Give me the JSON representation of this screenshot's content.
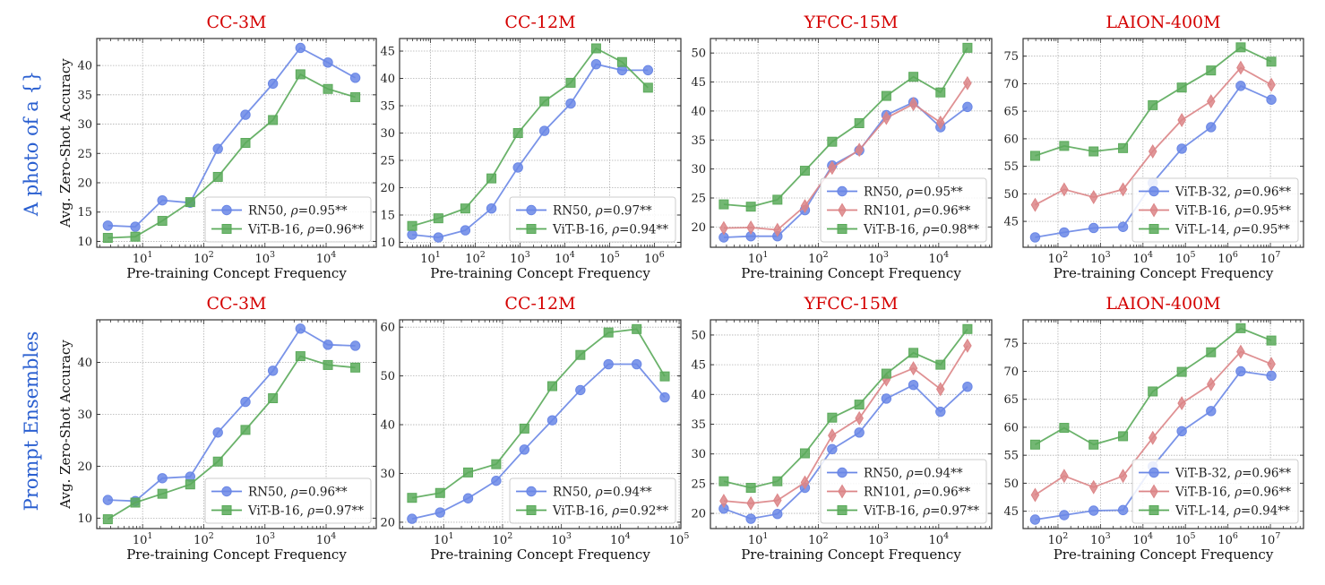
{
  "colors": {
    "blue": "#6a87e6",
    "red": "#dc8587",
    "green": "#5aaa5a",
    "title": "#d40000",
    "row_label": "#2a5fd0"
  },
  "row_labels": [
    "A photo of a {}",
    "Prompt Ensembles"
  ],
  "chart_data": [
    {
      "type": "line",
      "title": "CC-3M",
      "xlabel": "Pre-training Concept Frequency",
      "ylabel": "Avg. Zero-Shot Accuracy",
      "xscale": "log",
      "grid": true,
      "legend_position": "lower right",
      "xlim": [
        1.78,
        66000
      ],
      "ylim": [
        9.0,
        44.6
      ],
      "xticks": [
        10,
        100,
        1000,
        10000
      ],
      "yticks": [
        10,
        15,
        20,
        25,
        30,
        35,
        40
      ],
      "x": [
        2.7,
        7.6,
        21,
        60,
        170,
        480,
        1350,
        3800,
        10700,
        30000
      ],
      "series": [
        {
          "name": "RN50",
          "legend": "RN50, ρ=0.95**",
          "color": "blue",
          "marker": "circle",
          "values": [
            12.7,
            12.5,
            17.0,
            16.6,
            25.8,
            31.6,
            36.9,
            43.0,
            40.5,
            37.9
          ]
        },
        {
          "name": "ViT-B-16",
          "legend": "ViT-B-16, ρ=0.96**",
          "color": "green",
          "marker": "square",
          "values": [
            10.6,
            10.8,
            13.5,
            16.7,
            21.0,
            26.8,
            30.7,
            38.5,
            36.0,
            34.6
          ]
        }
      ]
    },
    {
      "type": "line",
      "title": "CC-12M",
      "xlabel": "Pre-training Concept Frequency",
      "ylabel": "",
      "xscale": "log",
      "grid": true,
      "legend_position": "lower right",
      "xlim": [
        2.04,
        3900000
      ],
      "ylim": [
        9.1,
        47.3
      ],
      "xticks": [
        10,
        100,
        1000,
        10000,
        100000,
        1000000
      ],
      "yticks": [
        10,
        15,
        20,
        25,
        30,
        35,
        40,
        45
      ],
      "x": [
        3.9,
        15,
        60,
        230,
        900,
        3500,
        13500,
        50000,
        190000,
        720000
      ],
      "series": [
        {
          "name": "RN50",
          "legend": "RN50, ρ=0.97**",
          "color": "blue",
          "marker": "circle",
          "values": [
            11.4,
            10.9,
            12.2,
            16.2,
            23.7,
            30.4,
            35.4,
            42.6,
            41.5,
            41.5
          ]
        },
        {
          "name": "ViT-B-16",
          "legend": "ViT-B-16, ρ=0.94**",
          "color": "green",
          "marker": "square",
          "values": [
            13.0,
            14.4,
            16.2,
            21.7,
            30.0,
            35.8,
            39.2,
            45.5,
            43.0,
            38.3
          ]
        }
      ]
    },
    {
      "type": "line",
      "title": "YFCC-15M",
      "xlabel": "Pre-training Concept Frequency",
      "ylabel": "",
      "xscale": "log",
      "grid": true,
      "legend_position": "lower right",
      "xlim": [
        1.62,
        75900
      ],
      "ylim": [
        16.5,
        52.5
      ],
      "xticks": [
        10,
        100,
        1000,
        10000
      ],
      "yticks": [
        20,
        25,
        30,
        35,
        40,
        45,
        50
      ],
      "x": [
        2.7,
        7.6,
        21,
        60,
        170,
        480,
        1350,
        3800,
        10700,
        30000
      ],
      "series": [
        {
          "name": "RN50",
          "legend": "RN50, ρ=0.95**",
          "color": "blue",
          "marker": "circle",
          "values": [
            18.2,
            18.4,
            18.4,
            22.9,
            30.6,
            33.2,
            39.3,
            41.5,
            37.2,
            40.7
          ]
        },
        {
          "name": "RN101",
          "legend": "RN101, ρ=0.96**",
          "color": "red",
          "marker": "diamond",
          "values": [
            19.8,
            19.9,
            19.5,
            23.6,
            30.2,
            33.3,
            38.8,
            41.2,
            38.0,
            44.8
          ]
        },
        {
          "name": "ViT-B-16",
          "legend": "ViT-B-16, ρ=0.98**",
          "color": "green",
          "marker": "square",
          "values": [
            23.9,
            23.5,
            24.7,
            29.7,
            34.7,
            37.9,
            42.6,
            45.9,
            43.2,
            50.9
          ]
        }
      ]
    },
    {
      "type": "line",
      "title": "LAION-400M",
      "xlabel": "Pre-training Concept Frequency",
      "ylabel": "",
      "xscale": "log",
      "grid": true,
      "legend_position": "lower right",
      "xlim": [
        15.1,
        60000000
      ],
      "ylim": [
        40.3,
        78.2
      ],
      "xticks": [
        100,
        1000,
        10000,
        100000,
        1000000,
        10000000
      ],
      "yticks": [
        45,
        50,
        55,
        60,
        65,
        70,
        75
      ],
      "x": [
        29,
        140,
        690,
        3400,
        17000,
        82000,
        400000,
        2000000,
        10500000
      ],
      "series": [
        {
          "name": "ViT-B-32",
          "legend": "ViT-B-32, ρ=0.96**",
          "color": "blue",
          "marker": "circle",
          "values": [
            42.1,
            43.0,
            43.8,
            44.0,
            52.0,
            58.2,
            62.1,
            69.6,
            67.1
          ]
        },
        {
          "name": "ViT-B-16",
          "legend": "ViT-B-16, ρ=0.95**",
          "color": "red",
          "marker": "diamond",
          "values": [
            48.0,
            50.8,
            49.4,
            50.8,
            57.7,
            63.4,
            66.8,
            72.9,
            69.8
          ]
        },
        {
          "name": "ViT-L-14",
          "legend": "ViT-L-14, ρ=0.95**",
          "color": "green",
          "marker": "square",
          "values": [
            56.9,
            58.7,
            57.7,
            58.3,
            66.1,
            69.3,
            72.4,
            76.6,
            74.0
          ]
        }
      ]
    },
    {
      "type": "line",
      "title": "CC-3M",
      "xlabel": "Pre-training Concept Frequency",
      "ylabel": "Avg. Zero-Shot Accuracy",
      "xscale": "log",
      "grid": true,
      "legend_position": "lower right",
      "xlim": [
        1.78,
        66000
      ],
      "ylim": [
        8.0,
        48.2
      ],
      "xticks": [
        10,
        100,
        1000,
        10000
      ],
      "yticks": [
        10,
        20,
        30,
        40
      ],
      "x": [
        2.7,
        7.6,
        21,
        60,
        170,
        480,
        1350,
        3800,
        10700,
        30000
      ],
      "series": [
        {
          "name": "RN50",
          "legend": "RN50, ρ=0.96**",
          "color": "blue",
          "marker": "circle",
          "values": [
            13.5,
            13.3,
            17.7,
            18.0,
            26.5,
            32.4,
            38.4,
            46.5,
            43.4,
            43.2
          ]
        },
        {
          "name": "ViT-B-16",
          "legend": "ViT-B-16, ρ=0.97**",
          "color": "green",
          "marker": "square",
          "values": [
            9.8,
            13.0,
            14.7,
            16.5,
            20.9,
            27.0,
            33.1,
            41.2,
            39.5,
            39.0
          ]
        }
      ]
    },
    {
      "type": "line",
      "title": "CC-12M",
      "xlabel": "Pre-training Concept Frequency",
      "ylabel": "",
      "xscale": "log",
      "grid": true,
      "legend_position": "lower right",
      "xlim": [
        1.78,
        107000
      ],
      "ylim": [
        18.7,
        61.5
      ],
      "xticks": [
        10,
        100,
        1000,
        10000,
        100000
      ],
      "yticks": [
        20,
        30,
        40,
        50,
        60
      ],
      "x": [
        2.9,
        8.7,
        26,
        78,
        235,
        700,
        2100,
        6300,
        19000,
        57000
      ],
      "series": [
        {
          "name": "RN50",
          "legend": "RN50, ρ=0.94**",
          "color": "blue",
          "marker": "circle",
          "values": [
            20.7,
            22.0,
            24.9,
            28.5,
            34.9,
            40.9,
            47.1,
            52.4,
            52.4,
            45.6
          ]
        },
        {
          "name": "ViT-B-16",
          "legend": "ViT-B-16, ρ=0.92**",
          "color": "green",
          "marker": "square",
          "values": [
            25.0,
            26.0,
            30.2,
            31.9,
            39.2,
            47.9,
            54.3,
            58.9,
            59.6,
            49.9
          ]
        }
      ]
    },
    {
      "type": "line",
      "title": "YFCC-15M",
      "xlabel": "Pre-training Concept Frequency",
      "ylabel": "",
      "xscale": "log",
      "grid": true,
      "legend_position": "lower right",
      "xlim": [
        1.62,
        75900
      ],
      "ylim": [
        17.45,
        52.55
      ],
      "xticks": [
        10,
        100,
        1000,
        10000
      ],
      "yticks": [
        20,
        25,
        30,
        35,
        40,
        45,
        50
      ],
      "x": [
        2.7,
        7.6,
        21,
        60,
        170,
        480,
        1350,
        3800,
        10700,
        30000
      ],
      "series": [
        {
          "name": "RN50",
          "legend": "RN50, ρ=0.94**",
          "color": "blue",
          "marker": "circle",
          "values": [
            20.8,
            19.1,
            19.9,
            24.3,
            30.8,
            33.6,
            39.3,
            41.6,
            37.1,
            41.3
          ]
        },
        {
          "name": "RN101",
          "legend": "RN101, ρ=0.96**",
          "color": "red",
          "marker": "diamond",
          "values": [
            22.1,
            21.7,
            22.2,
            25.2,
            33.1,
            36.0,
            42.5,
            44.4,
            40.9,
            48.2
          ]
        },
        {
          "name": "ViT-B-16",
          "legend": "ViT-B-16, ρ=0.97**",
          "color": "green",
          "marker": "square",
          "values": [
            25.4,
            24.3,
            25.4,
            30.1,
            36.1,
            38.3,
            43.5,
            47.0,
            45.0,
            51.0
          ]
        }
      ]
    },
    {
      "type": "line",
      "title": "LAION-400M",
      "xlabel": "Pre-training Concept Frequency",
      "ylabel": "",
      "xscale": "log",
      "grid": true,
      "legend_position": "lower right",
      "xlim": [
        15.1,
        60000000
      ],
      "ylim": [
        41.9,
        79.2
      ],
      "xticks": [
        100,
        1000,
        10000,
        100000,
        1000000,
        10000000
      ],
      "yticks": [
        45,
        50,
        55,
        60,
        65,
        70,
        75
      ],
      "x": [
        29,
        140,
        690,
        3400,
        17000,
        82000,
        400000,
        2000000,
        10500000
      ],
      "series": [
        {
          "name": "ViT-B-32",
          "legend": "ViT-B-32, ρ=0.96**",
          "color": "blue",
          "marker": "circle",
          "values": [
            43.5,
            44.3,
            45.1,
            45.2,
            53.0,
            59.3,
            62.9,
            70.0,
            69.2
          ]
        },
        {
          "name": "ViT-B-16",
          "legend": "ViT-B-16, ρ=0.96**",
          "color": "red",
          "marker": "diamond",
          "values": [
            47.9,
            51.3,
            49.3,
            51.3,
            58.1,
            64.3,
            67.7,
            73.5,
            71.3
          ]
        },
        {
          "name": "ViT-L-14",
          "legend": "ViT-L-14, ρ=0.94**",
          "color": "green",
          "marker": "square",
          "values": [
            56.9,
            59.9,
            56.9,
            58.4,
            66.4,
            69.9,
            73.4,
            77.7,
            75.5
          ]
        }
      ]
    }
  ]
}
